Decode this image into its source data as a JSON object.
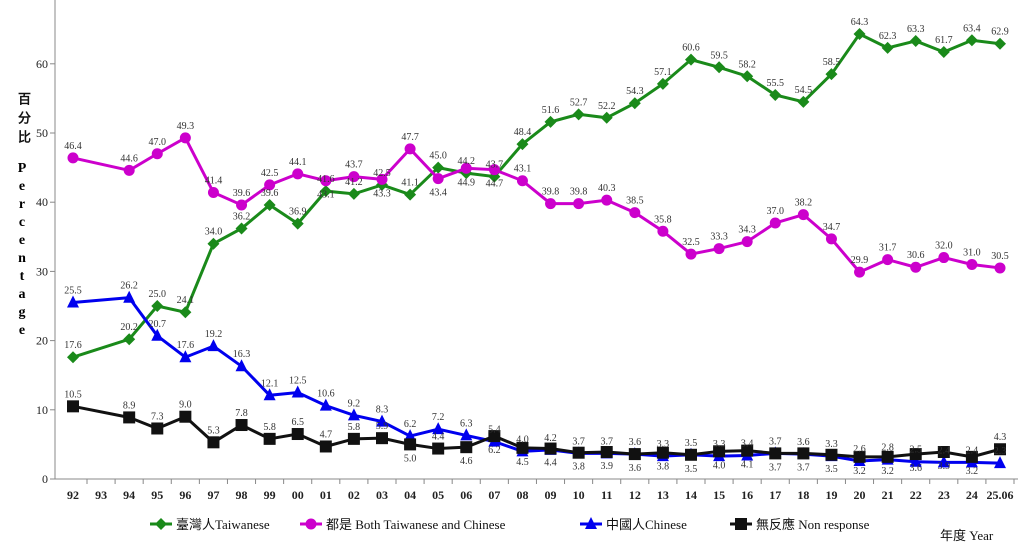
{
  "chart_data": {
    "type": "line",
    "title": "",
    "ylabel_zh": "百分比",
    "ylabel": "Percentage",
    "xlabel": "年度 Year",
    "ylim": [
      0,
      68
    ],
    "yticks": [
      0,
      10,
      20,
      30,
      40,
      50,
      60
    ],
    "grid": false,
    "legend_position": "bottom",
    "categories": [
      "92",
      "93",
      "94",
      "95",
      "96",
      "97",
      "98",
      "99",
      "00",
      "01",
      "02",
      "03",
      "04",
      "05",
      "06",
      "07",
      "08",
      "09",
      "10",
      "11",
      "12",
      "13",
      "14",
      "15",
      "16",
      "17",
      "18",
      "19",
      "20",
      "21",
      "22",
      "23",
      "24",
      "25.06"
    ],
    "series": [
      {
        "name": "臺灣人Taiwanese",
        "color": "#1a8a1a",
        "marker": "diamond",
        "values": [
          17.6,
          null,
          20.2,
          25.0,
          24.1,
          34.0,
          36.2,
          39.6,
          36.9,
          41.6,
          41.2,
          42.5,
          41.1,
          45.0,
          44.2,
          43.7,
          48.4,
          51.6,
          52.7,
          52.2,
          54.3,
          57.1,
          60.6,
          59.5,
          58.2,
          55.5,
          54.5,
          58.5,
          64.3,
          62.3,
          63.3,
          61.7,
          63.4,
          62.9
        ]
      },
      {
        "name": "都是 Both Taiwanese and Chinese",
        "color": "#cc00cc",
        "marker": "circle",
        "values": [
          46.4,
          null,
          44.6,
          47.0,
          49.3,
          41.4,
          39.6,
          42.5,
          44.1,
          43.1,
          43.7,
          43.3,
          47.7,
          43.4,
          44.9,
          44.7,
          43.1,
          39.8,
          39.8,
          40.3,
          38.5,
          35.8,
          32.5,
          33.3,
          34.3,
          37.0,
          38.2,
          34.7,
          29.9,
          31.7,
          30.6,
          32.0,
          31.0,
          30.5
        ]
      },
      {
        "name": "中國人Chinese",
        "color": "#0000ee",
        "marker": "triangle",
        "values": [
          25.5,
          null,
          26.2,
          20.7,
          17.6,
          19.2,
          16.3,
          12.1,
          12.5,
          10.6,
          9.2,
          8.3,
          6.2,
          7.2,
          6.3,
          5.4,
          4.0,
          4.2,
          3.7,
          3.7,
          3.6,
          3.3,
          3.5,
          3.3,
          3.4,
          3.7,
          3.6,
          3.3,
          2.6,
          2.8,
          2.5,
          2.4,
          2.4,
          2.3
        ]
      },
      {
        "name": "無反應 Non response",
        "color": "#111111",
        "marker": "square",
        "values": [
          10.5,
          null,
          8.9,
          7.3,
          9.0,
          5.3,
          7.8,
          5.8,
          6.5,
          4.7,
          5.8,
          5.9,
          5.0,
          4.4,
          4.6,
          6.2,
          4.5,
          4.4,
          3.8,
          3.9,
          3.6,
          3.8,
          3.5,
          4.0,
          4.1,
          3.7,
          3.7,
          3.5,
          3.2,
          3.2,
          3.6,
          3.9,
          3.2,
          4.3
        ]
      }
    ]
  }
}
